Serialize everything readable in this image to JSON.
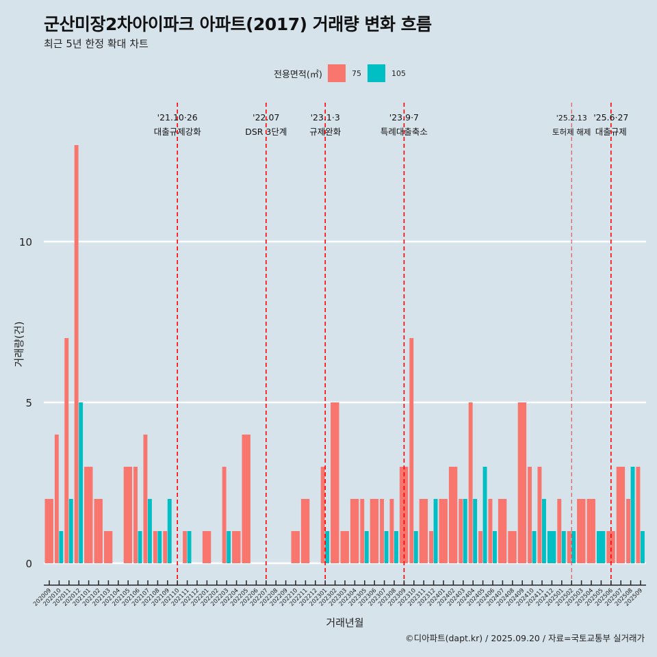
{
  "header": {
    "title": "군산미장2차아이파크 아파트(2017) 거래량 변화 흐름",
    "subtitle": "최근 5년 한정 확대 차트"
  },
  "legend": {
    "title": "전용면적(㎡)",
    "items": [
      {
        "label": "75",
        "color": "#f8766d"
      },
      {
        "label": "105",
        "color": "#00bfc4"
      }
    ]
  },
  "credit": "©디아파트(dapt.kr) / 2025.09.20 / 자료=국토교통부 실거래가",
  "chart_data": {
    "type": "bar",
    "title": "군산미장2차아이파크 아파트(2017) 거래량 변화 흐름",
    "subtitle": "최근 5년 한정 확대 차트",
    "xlabel": "거래년월",
    "ylabel": "거래량(건)",
    "ylim": [
      -0.6,
      14.1
    ],
    "yticks": [
      0,
      5,
      10
    ],
    "grid": true,
    "legend_position": "top",
    "categories": [
      "202009",
      "202010",
      "202011",
      "202012",
      "202101",
      "202102",
      "202103",
      "202104",
      "202105",
      "202106",
      "202107",
      "202108",
      "202109",
      "202110",
      "202111",
      "202112",
      "202201",
      "202202",
      "202203",
      "202204",
      "202205",
      "202206",
      "202207",
      "202208",
      "202209",
      "202210",
      "202211",
      "202212",
      "202301",
      "202302",
      "202303",
      "202304",
      "202305",
      "202306",
      "202307",
      "202308",
      "202309",
      "202310",
      "202311",
      "202312",
      "202401",
      "202402",
      "202403",
      "202404",
      "202405",
      "202406",
      "202407",
      "202408",
      "202409",
      "202410",
      "202411",
      "202412",
      "202501",
      "202502",
      "202503",
      "202504",
      "202505",
      "202506",
      "202507",
      "202508",
      "202509"
    ],
    "series": [
      {
        "name": "75",
        "color": "#f8766d",
        "values": [
          2,
          4,
          7,
          13,
          3,
          2,
          1,
          0,
          3,
          3,
          4,
          1,
          1,
          0,
          1,
          0,
          1,
          0,
          3,
          1,
          4,
          0,
          0,
          0,
          0,
          1,
          2,
          0,
          3,
          5,
          1,
          2,
          2,
          2,
          2,
          2,
          3,
          7,
          2,
          1,
          2,
          3,
          2,
          5,
          1,
          2,
          2,
          1,
          5,
          3,
          3,
          0,
          2,
          1,
          2,
          2,
          0,
          1,
          3,
          2,
          3
        ]
      },
      {
        "name": "105",
        "color": "#00bfc4",
        "values": [
          0,
          1,
          2,
          5,
          0,
          0,
          0,
          0,
          0,
          1,
          2,
          1,
          2,
          0,
          1,
          0,
          0,
          0,
          1,
          0,
          0,
          0,
          0,
          0,
          0,
          0,
          0,
          0,
          1,
          0,
          0,
          0,
          1,
          0,
          1,
          1,
          0,
          1,
          0,
          2,
          0,
          0,
          2,
          2,
          3,
          1,
          0,
          0,
          0,
          1,
          2,
          1,
          1,
          1,
          0,
          0,
          1,
          0,
          0,
          3,
          1
        ]
      }
    ],
    "annotations": [
      {
        "month": "202110",
        "date": "'21.10·26",
        "label": "대출규제강화",
        "style": "major"
      },
      {
        "month": "202207",
        "date": "'22.07",
        "label": "DSR 3단계",
        "style": "major"
      },
      {
        "month": "202301",
        "date": "'23.1·3",
        "label": "규제완화",
        "style": "major"
      },
      {
        "month": "202309",
        "date": "'23.9·7",
        "label": "특례대출축소",
        "style": "major"
      },
      {
        "month": "202502",
        "date": "'25.2.13",
        "label": "토허제 해제",
        "style": "minor"
      },
      {
        "month": "202506",
        "date": "'25.6·27",
        "label": "대출규제",
        "style": "major"
      }
    ]
  }
}
